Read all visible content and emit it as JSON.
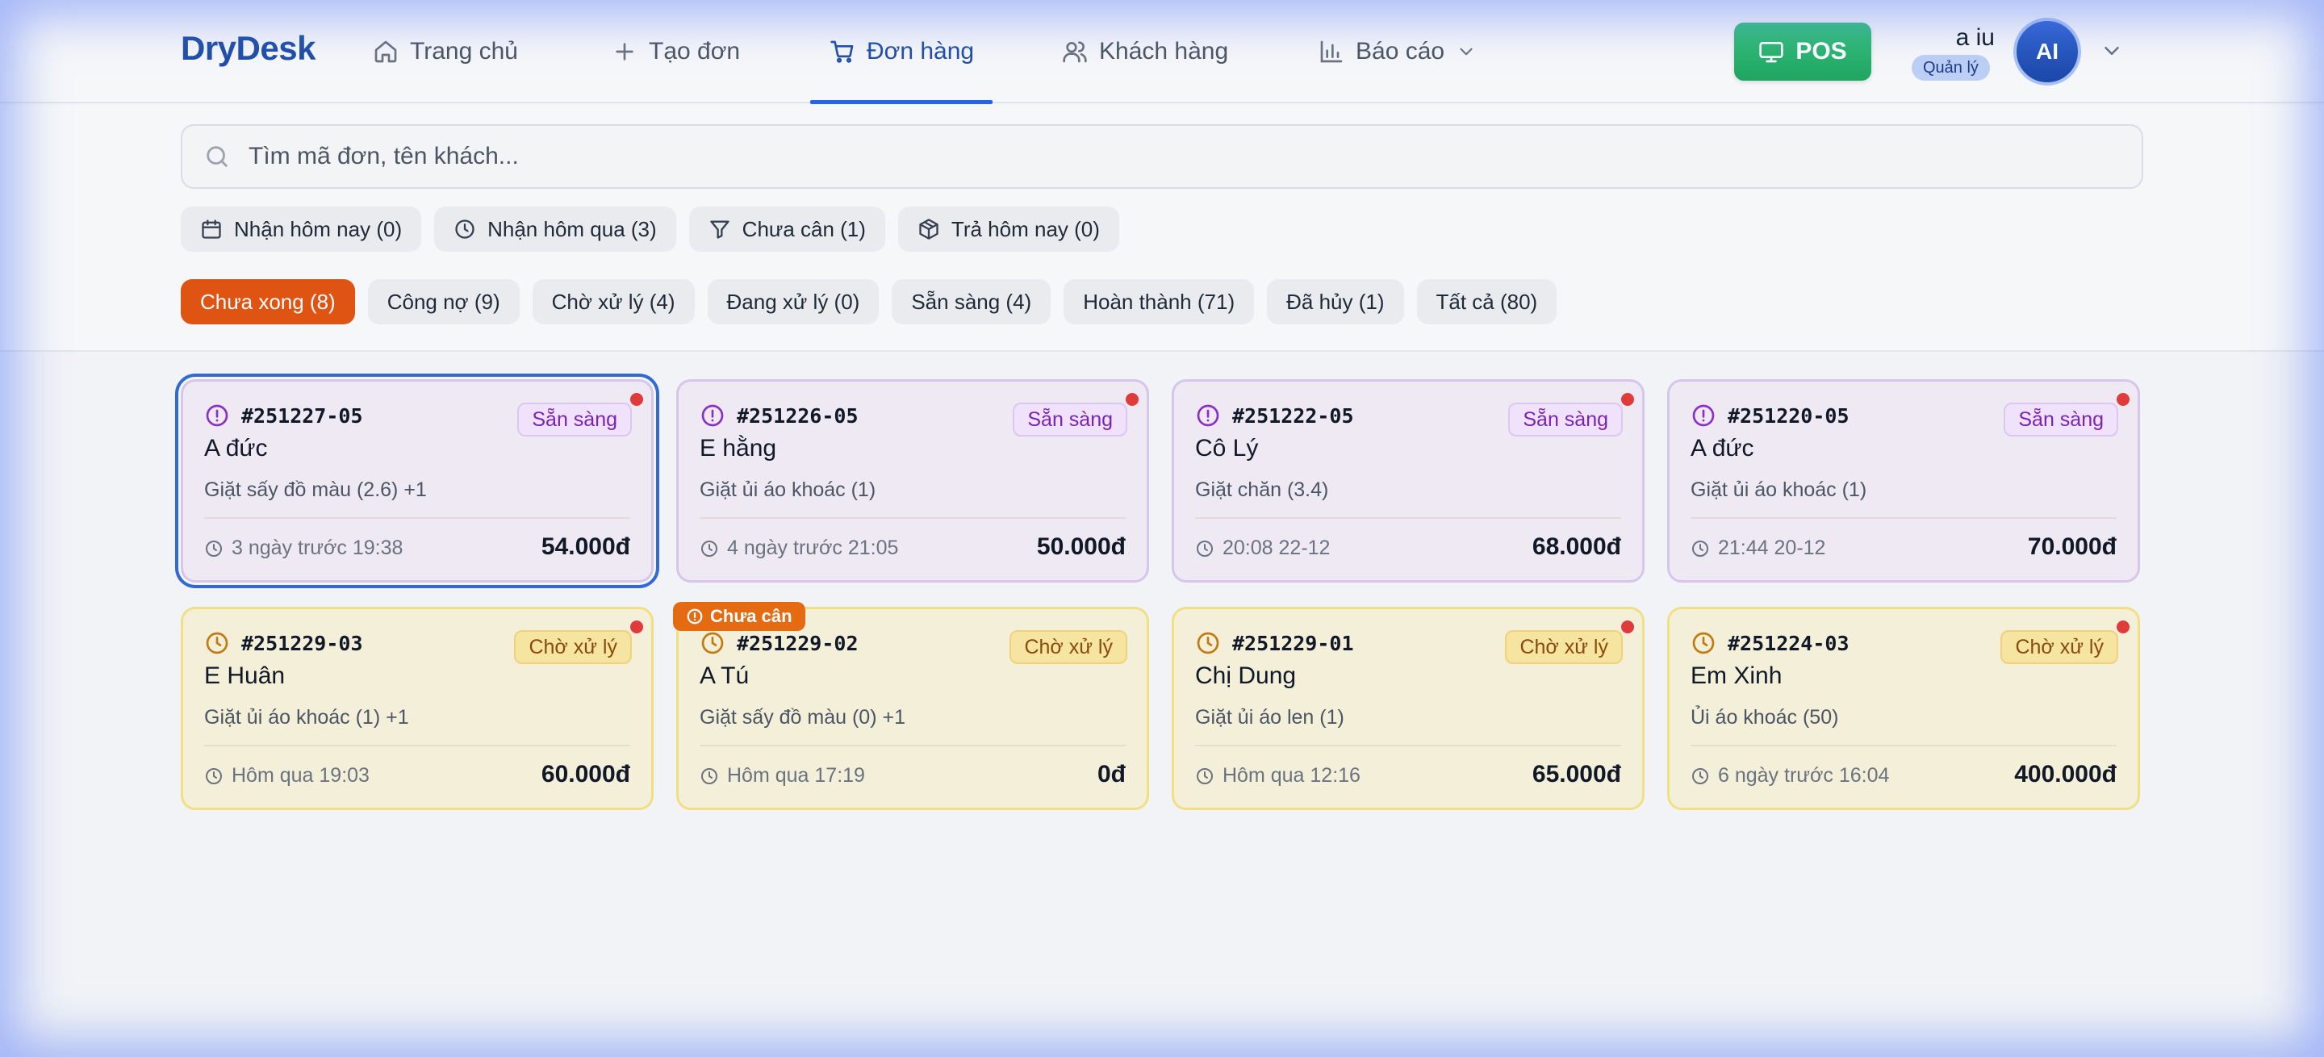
{
  "app": {
    "logo": "DryDesk"
  },
  "nav": {
    "items": [
      {
        "label": "Trang chủ",
        "icon": "home-icon"
      },
      {
        "label": "Tạo đơn",
        "icon": "plus-icon"
      },
      {
        "label": "Đơn hàng",
        "icon": "cart-icon",
        "active": true
      },
      {
        "label": "Khách hàng",
        "icon": "users-icon"
      },
      {
        "label": "Báo cáo",
        "icon": "bar-chart-icon"
      }
    ],
    "pos_label": "POS",
    "user": {
      "name": "a iu",
      "role": "Quản lý",
      "initials": "AI"
    }
  },
  "search": {
    "placeholder": "Tìm mã đơn, tên khách..."
  },
  "quick_filters": [
    {
      "label": "Nhận hôm nay (0)",
      "icon": "calendar-icon"
    },
    {
      "label": "Nhận hôm qua (3)",
      "icon": "clock-icon"
    },
    {
      "label": "Chưa cân (1)",
      "icon": "filter-icon"
    },
    {
      "label": "Trả hôm nay (0)",
      "icon": "package-icon"
    }
  ],
  "status_filters": [
    {
      "label": "Chưa xong (8)",
      "active": true
    },
    {
      "label": "Công nợ (9)"
    },
    {
      "label": "Chờ xử lý (4)"
    },
    {
      "label": "Đang xử lý (0)"
    },
    {
      "label": "Sẵn sàng (4)"
    },
    {
      "label": "Hoàn thành (71)"
    },
    {
      "label": "Đã hủy (1)"
    },
    {
      "label": "Tất cả (80)"
    }
  ],
  "orders": [
    {
      "code": "#251227-05",
      "status": "Sẵn sàng",
      "customer": "A đức",
      "service": "Giặt sấy đồ màu (2.6) +1",
      "time": "3 ngày trước 19:38",
      "price": "54.000đ"
    },
    {
      "code": "#251226-05",
      "status": "Sẵn sàng",
      "customer": "E hằng",
      "service": "Giặt ủi áo khoác (1)",
      "time": "4 ngày trước 21:05",
      "price": "50.000đ"
    },
    {
      "code": "#251222-05",
      "status": "Sẵn sàng",
      "customer": "Cô Lý",
      "service": "Giặt chăn (3.4)",
      "time": "20:08 22-12",
      "price": "68.000đ"
    },
    {
      "code": "#251220-05",
      "status": "Sẵn sàng",
      "customer": "A đức",
      "service": "Giặt ủi áo khoác (1)",
      "time": "21:44 20-12",
      "price": "70.000đ"
    },
    {
      "code": "#251229-03",
      "status": "Chờ xử lý",
      "customer": "E Huân",
      "service": "Giặt ủi áo khoác (1) +1",
      "time": "Hôm qua 19:03",
      "price": "60.000đ"
    },
    {
      "code": "#251229-02",
      "status": "Chờ xử lý",
      "customer": "A Tú",
      "service": "Giặt sấy đồ màu (0) +1",
      "time": "Hôm qua 17:19",
      "price": "0đ",
      "tag": "Chưa cân"
    },
    {
      "code": "#251229-01",
      "status": "Chờ xử lý",
      "customer": "Chị Dung",
      "service": "Giặt ủi áo len (1)",
      "time": "Hôm qua 12:16",
      "price": "65.000đ"
    },
    {
      "code": "#251224-03",
      "status": "Chờ xử lý",
      "customer": "Em Xinh",
      "service": "Ủi áo khoác (50)",
      "time": "6 ngày trước 16:04",
      "price": "400.000đ"
    }
  ]
}
